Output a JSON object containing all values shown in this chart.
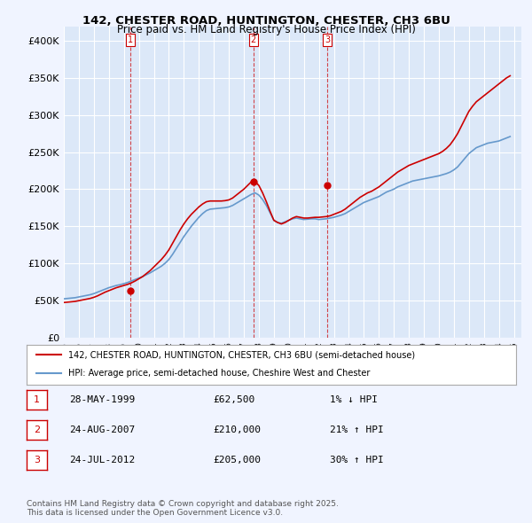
{
  "title1": "142, CHESTER ROAD, HUNTINGTON, CHESTER, CH3 6BU",
  "title2": "Price paid vs. HM Land Registry's House Price Index (HPI)",
  "ylabel": "",
  "ylim": [
    0,
    420000
  ],
  "yticks": [
    0,
    50000,
    100000,
    150000,
    200000,
    250000,
    300000,
    350000,
    400000
  ],
  "ytick_labels": [
    "£0",
    "£50K",
    "£100K",
    "£150K",
    "£200K",
    "£250K",
    "£300K",
    "£350K",
    "£400K"
  ],
  "background_color": "#f0f4ff",
  "plot_bg_color": "#dce8f8",
  "grid_color": "#ffffff",
  "sale_color": "#cc0000",
  "hpi_color": "#6699cc",
  "legend_sale": "142, CHESTER ROAD, HUNTINGTON, CHESTER, CH3 6BU (semi-detached house)",
  "legend_hpi": "HPI: Average price, semi-detached house, Cheshire West and Chester",
  "sale_dates": [
    1999.41,
    2007.64,
    2012.56
  ],
  "sale_prices": [
    62500,
    210000,
    205000
  ],
  "sale_labels": [
    "1",
    "2",
    "3"
  ],
  "transaction_rows": [
    {
      "label": "1",
      "date": "28-MAY-1999",
      "price": "£62,500",
      "hpi": "1% ↓ HPI"
    },
    {
      "label": "2",
      "date": "24-AUG-2007",
      "price": "£210,000",
      "hpi": "21% ↑ HPI"
    },
    {
      "label": "3",
      "date": "24-JUL-2012",
      "price": "£205,000",
      "hpi": "30% ↑ HPI"
    }
  ],
  "footer": "Contains HM Land Registry data © Crown copyright and database right 2025.\nThis data is licensed under the Open Government Licence v3.0.",
  "hpi_data": {
    "years": [
      1995.0,
      1995.25,
      1995.5,
      1995.75,
      1996.0,
      1996.25,
      1996.5,
      1996.75,
      1997.0,
      1997.25,
      1997.5,
      1997.75,
      1998.0,
      1998.25,
      1998.5,
      1998.75,
      1999.0,
      1999.25,
      1999.5,
      1999.75,
      2000.0,
      2000.25,
      2000.5,
      2000.75,
      2001.0,
      2001.25,
      2001.5,
      2001.75,
      2002.0,
      2002.25,
      2002.5,
      2002.75,
      2003.0,
      2003.25,
      2003.5,
      2003.75,
      2004.0,
      2004.25,
      2004.5,
      2004.75,
      2005.0,
      2005.25,
      2005.5,
      2005.75,
      2006.0,
      2006.25,
      2006.5,
      2006.75,
      2007.0,
      2007.25,
      2007.5,
      2007.75,
      2008.0,
      2008.25,
      2008.5,
      2008.75,
      2009.0,
      2009.25,
      2009.5,
      2009.75,
      2010.0,
      2010.25,
      2010.5,
      2010.75,
      2011.0,
      2011.25,
      2011.5,
      2011.75,
      2012.0,
      2012.25,
      2012.5,
      2012.75,
      2013.0,
      2013.25,
      2013.5,
      2013.75,
      2014.0,
      2014.25,
      2014.5,
      2014.75,
      2015.0,
      2015.25,
      2015.5,
      2015.75,
      2016.0,
      2016.25,
      2016.5,
      2016.75,
      2017.0,
      2017.25,
      2017.5,
      2017.75,
      2018.0,
      2018.25,
      2018.5,
      2018.75,
      2019.0,
      2019.25,
      2019.5,
      2019.75,
      2020.0,
      2020.25,
      2020.5,
      2020.75,
      2021.0,
      2021.25,
      2021.5,
      2021.75,
      2022.0,
      2022.25,
      2022.5,
      2022.75,
      2023.0,
      2023.25,
      2023.5,
      2023.75,
      2024.0,
      2024.25,
      2024.5,
      2024.75
    ],
    "values": [
      52000,
      52500,
      53000,
      53500,
      54500,
      55500,
      56500,
      57500,
      59000,
      61000,
      63000,
      65000,
      67000,
      68500,
      70000,
      71000,
      72500,
      74000,
      76000,
      78000,
      80000,
      82000,
      84500,
      87000,
      90000,
      93000,
      96000,
      100000,
      105000,
      112000,
      120000,
      128000,
      136000,
      143000,
      150000,
      156000,
      162000,
      167000,
      171000,
      173000,
      173500,
      174000,
      174500,
      175000,
      176000,
      178000,
      181000,
      184000,
      187000,
      190000,
      193000,
      195000,
      192000,
      186000,
      178000,
      168000,
      158000,
      155000,
      154000,
      156000,
      158000,
      160000,
      161000,
      160000,
      159000,
      159500,
      160000,
      160000,
      159000,
      159500,
      160000,
      161000,
      162000,
      163500,
      165000,
      167000,
      170000,
      173000,
      176000,
      179000,
      182000,
      184000,
      186000,
      188000,
      190000,
      193000,
      196000,
      198000,
      200000,
      203000,
      205000,
      207000,
      209000,
      211000,
      212000,
      213000,
      214000,
      215000,
      216000,
      217000,
      218000,
      219500,
      221000,
      223000,
      226000,
      230000,
      236000,
      242000,
      248000,
      252000,
      256000,
      258000,
      260000,
      262000,
      263000,
      264000,
      265000,
      267000,
      269000,
      271000
    ]
  },
  "price_paid_data": {
    "years": [
      1995.0,
      1995.25,
      1995.5,
      1995.75,
      1996.0,
      1996.25,
      1996.5,
      1996.75,
      1997.0,
      1997.25,
      1997.5,
      1997.75,
      1998.0,
      1998.25,
      1998.5,
      1998.75,
      1999.0,
      1999.25,
      1999.5,
      1999.75,
      2000.0,
      2000.25,
      2000.5,
      2000.75,
      2001.0,
      2001.25,
      2001.5,
      2001.75,
      2002.0,
      2002.25,
      2002.5,
      2002.75,
      2003.0,
      2003.25,
      2003.5,
      2003.75,
      2004.0,
      2004.25,
      2004.5,
      2004.75,
      2005.0,
      2005.25,
      2005.5,
      2005.75,
      2006.0,
      2006.25,
      2006.5,
      2006.75,
      2007.0,
      2007.25,
      2007.5,
      2007.75,
      2008.0,
      2008.25,
      2008.5,
      2008.75,
      2009.0,
      2009.25,
      2009.5,
      2009.75,
      2010.0,
      2010.25,
      2010.5,
      2010.75,
      2011.0,
      2011.25,
      2011.5,
      2011.75,
      2012.0,
      2012.25,
      2012.5,
      2012.75,
      2013.0,
      2013.25,
      2013.5,
      2013.75,
      2014.0,
      2014.25,
      2014.5,
      2014.75,
      2015.0,
      2015.25,
      2015.5,
      2015.75,
      2016.0,
      2016.25,
      2016.5,
      2016.75,
      2017.0,
      2017.25,
      2017.5,
      2017.75,
      2018.0,
      2018.25,
      2018.5,
      2018.75,
      2019.0,
      2019.25,
      2019.5,
      2019.75,
      2020.0,
      2020.25,
      2020.5,
      2020.75,
      2021.0,
      2021.25,
      2021.5,
      2021.75,
      2022.0,
      2022.25,
      2022.5,
      2022.75,
      2023.0,
      2023.25,
      2023.5,
      2023.75,
      2024.0,
      2024.25,
      2024.5,
      2024.75
    ],
    "values": [
      47000,
      47500,
      48000,
      48500,
      49500,
      50500,
      51500,
      52500,
      54000,
      56000,
      58500,
      61000,
      63000,
      65000,
      67000,
      68500,
      70000,
      71500,
      73500,
      76000,
      79000,
      82000,
      86000,
      90000,
      95000,
      100000,
      105000,
      111000,
      118000,
      127000,
      136000,
      145000,
      153000,
      160000,
      166000,
      171000,
      176000,
      180000,
      183000,
      184000,
      184000,
      184000,
      184000,
      184500,
      185500,
      188000,
      192000,
      196000,
      200000,
      205000,
      210000,
      210000,
      205000,
      195000,
      183000,
      170000,
      158000,
      155000,
      153000,
      155000,
      158000,
      161000,
      163000,
      162000,
      161000,
      161000,
      161500,
      162000,
      162000,
      162500,
      163000,
      164000,
      166000,
      168000,
      170000,
      173000,
      177000,
      181000,
      185000,
      189000,
      192000,
      195000,
      197000,
      200000,
      203000,
      207000,
      211000,
      215000,
      219000,
      223000,
      226000,
      229000,
      232000,
      234000,
      236000,
      238000,
      240000,
      242000,
      244000,
      246000,
      248000,
      251000,
      255000,
      260000,
      267000,
      275000,
      285000,
      295000,
      305000,
      312000,
      318000,
      322000,
      326000,
      330000,
      334000,
      338000,
      342000,
      346000,
      350000,
      353000
    ]
  }
}
